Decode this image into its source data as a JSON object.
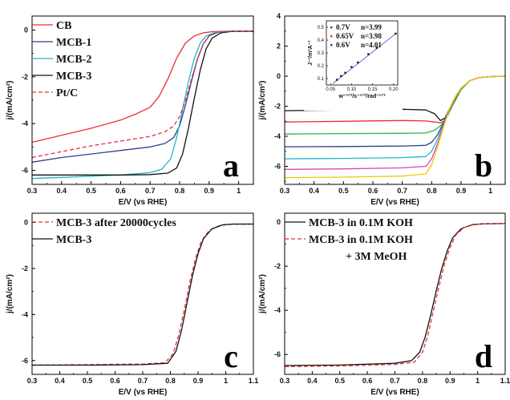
{
  "chart_data": [
    {
      "type": "line",
      "panel_letter": "a",
      "xlabel": "E/V (vs RHE)",
      "ylabel": "j/(mA/cm²)",
      "xlim": [
        0.3,
        1.05
      ],
      "ylim": [
        -6.6,
        0.6
      ],
      "xticks": [
        0.3,
        0.4,
        0.5,
        0.6,
        0.7,
        0.8,
        0.9,
        1.0
      ],
      "yticks": [
        0,
        -2,
        -4,
        -6
      ],
      "legend_position": "top-left",
      "series": [
        {
          "name": "CB",
          "color": "#e8303a",
          "dash": "solid",
          "x": [
            0.3,
            0.4,
            0.5,
            0.6,
            0.65,
            0.7,
            0.73,
            0.76,
            0.79,
            0.82,
            0.85,
            0.88,
            0.91,
            0.95,
            1.0,
            1.05
          ],
          "y": [
            -4.8,
            -4.5,
            -4.2,
            -3.85,
            -3.6,
            -3.3,
            -2.85,
            -2.1,
            -1.2,
            -0.55,
            -0.25,
            -0.12,
            -0.07,
            -0.05,
            -0.05,
            -0.05
          ]
        },
        {
          "name": "MCB-1",
          "color": "#2e3f8f",
          "dash": "solid",
          "x": [
            0.3,
            0.4,
            0.5,
            0.6,
            0.7,
            0.75,
            0.78,
            0.8,
            0.82,
            0.84,
            0.86,
            0.88,
            0.9,
            0.93,
            0.97,
            1.05
          ],
          "y": [
            -5.65,
            -5.45,
            -5.3,
            -5.15,
            -5.0,
            -4.85,
            -4.6,
            -4.1,
            -3.2,
            -2.2,
            -1.25,
            -0.6,
            -0.25,
            -0.1,
            -0.05,
            -0.05
          ]
        },
        {
          "name": "MCB-2",
          "color": "#1fb7c9",
          "dash": "solid",
          "x": [
            0.3,
            0.4,
            0.5,
            0.6,
            0.7,
            0.74,
            0.77,
            0.79,
            0.81,
            0.83,
            0.85,
            0.87,
            0.89,
            0.92,
            0.96,
            1.05
          ],
          "y": [
            -6.35,
            -6.3,
            -6.25,
            -6.2,
            -6.1,
            -5.95,
            -5.5,
            -4.6,
            -3.4,
            -2.2,
            -1.2,
            -0.55,
            -0.25,
            -0.1,
            -0.05,
            -0.05
          ]
        },
        {
          "name": "MCB-3",
          "color": "#111111",
          "dash": "solid",
          "x": [
            0.3,
            0.4,
            0.5,
            0.6,
            0.7,
            0.76,
            0.79,
            0.81,
            0.83,
            0.85,
            0.87,
            0.89,
            0.91,
            0.94,
            0.98,
            1.05
          ],
          "y": [
            -6.2,
            -6.2,
            -6.2,
            -6.2,
            -6.18,
            -6.12,
            -5.9,
            -5.3,
            -4.2,
            -2.9,
            -1.7,
            -0.8,
            -0.35,
            -0.12,
            -0.05,
            -0.05
          ]
        },
        {
          "name": "Pt/C",
          "color": "#e8303a",
          "dash": "dashed",
          "x": [
            0.3,
            0.4,
            0.5,
            0.6,
            0.7,
            0.75,
            0.78,
            0.8,
            0.82,
            0.84,
            0.86,
            0.88,
            0.9,
            0.93,
            0.97,
            1.05
          ],
          "y": [
            -5.45,
            -5.2,
            -4.95,
            -4.75,
            -4.55,
            -4.35,
            -4.1,
            -3.7,
            -3.0,
            -2.1,
            -1.25,
            -0.6,
            -0.25,
            -0.1,
            -0.05,
            -0.05
          ]
        }
      ]
    },
    {
      "type": "line",
      "panel_letter": "b",
      "xlabel": "E/V (vs RHE)",
      "ylabel": "j/(mA/cm²)",
      "xlim": [
        0.3,
        1.05
      ],
      "ylim": [
        -7.2,
        4.0
      ],
      "xticks": [
        0.3,
        0.4,
        0.5,
        0.6,
        0.7,
        0.8,
        0.9,
        1.0
      ],
      "yticks": [
        4,
        2,
        0,
        -2,
        -4,
        -6
      ],
      "series": [
        {
          "color": "#111111",
          "dash": "solid",
          "x": [
            0.3,
            0.5,
            0.7,
            0.78,
            0.81,
            0.83,
            0.845,
            0.87,
            0.9,
            0.93,
            0.96,
            1.0,
            1.05
          ],
          "y": [
            -2.3,
            -2.25,
            -2.2,
            -2.25,
            -2.5,
            -2.95,
            -2.8,
            -1.8,
            -0.8,
            -0.3,
            -0.1,
            -0.03,
            0.0
          ]
        },
        {
          "color": "#e8303a",
          "dash": "solid",
          "x": [
            0.3,
            0.5,
            0.7,
            0.78,
            0.81,
            0.83,
            0.845,
            0.87,
            0.9,
            0.93,
            0.96,
            1.0,
            1.05
          ],
          "y": [
            -3.05,
            -3.0,
            -2.95,
            -2.98,
            -3.05,
            -3.1,
            -2.95,
            -1.9,
            -0.85,
            -0.3,
            -0.1,
            -0.03,
            0.0
          ]
        },
        {
          "color": "#2db34a",
          "dash": "solid",
          "x": [
            0.3,
            0.5,
            0.7,
            0.78,
            0.81,
            0.83,
            0.85,
            0.87,
            0.9,
            0.93,
            0.96,
            1.0,
            1.05
          ],
          "y": [
            -3.85,
            -3.82,
            -3.8,
            -3.78,
            -3.6,
            -3.3,
            -2.8,
            -2.0,
            -0.9,
            -0.3,
            -0.1,
            -0.03,
            0.0
          ]
        },
        {
          "color": "#2e3f8f",
          "dash": "solid",
          "x": [
            0.3,
            0.5,
            0.7,
            0.78,
            0.8,
            0.82,
            0.84,
            0.86,
            0.88,
            0.9,
            0.93,
            0.96,
            1.0,
            1.05
          ],
          "y": [
            -4.7,
            -4.68,
            -4.65,
            -4.6,
            -4.4,
            -3.9,
            -3.1,
            -2.2,
            -1.4,
            -0.8,
            -0.3,
            -0.1,
            -0.03,
            0.0
          ]
        },
        {
          "color": "#1fb7c9",
          "dash": "solid",
          "x": [
            0.3,
            0.5,
            0.7,
            0.78,
            0.8,
            0.82,
            0.84,
            0.86,
            0.88,
            0.9,
            0.93,
            0.96,
            1.0,
            1.05
          ],
          "y": [
            -5.5,
            -5.47,
            -5.42,
            -5.35,
            -5.0,
            -4.2,
            -3.2,
            -2.2,
            -1.4,
            -0.8,
            -0.3,
            -0.1,
            -0.03,
            0.0
          ]
        },
        {
          "color": "#e040c0",
          "dash": "solid",
          "x": [
            0.3,
            0.5,
            0.7,
            0.78,
            0.8,
            0.82,
            0.84,
            0.86,
            0.88,
            0.9,
            0.93,
            0.96,
            1.0,
            1.05
          ],
          "y": [
            -6.2,
            -6.17,
            -6.1,
            -6.0,
            -5.5,
            -4.5,
            -3.3,
            -2.2,
            -1.4,
            -0.8,
            -0.3,
            -0.1,
            -0.03,
            0.0
          ]
        },
        {
          "color": "#f2c800",
          "dash": "solid",
          "x": [
            0.3,
            0.5,
            0.7,
            0.78,
            0.8,
            0.82,
            0.84,
            0.86,
            0.88,
            0.9,
            0.93,
            0.96,
            1.0,
            1.05
          ],
          "y": [
            -6.75,
            -6.72,
            -6.65,
            -6.5,
            -5.9,
            -4.7,
            -3.4,
            -2.2,
            -1.4,
            -0.8,
            -0.3,
            -0.1,
            -0.03,
            0.0
          ]
        }
      ],
      "inset": {
        "type": "scatter",
        "xlabel": "w⁻¹ᐟ²/s⁻¹ᐟ²/rad⁻¹ᐟ²",
        "ylabel": "J⁻¹/m²A⁻¹",
        "xlim": [
          0.04,
          0.21
        ],
        "ylim": [
          0.05,
          0.55
        ],
        "xticks": [
          "0.05",
          "0.10",
          "0.15",
          "0.20"
        ],
        "yticks": [
          "0.1",
          "0.2",
          "0.3",
          "0.4",
          "0.5"
        ],
        "fit_line": {
          "x": [
            0.055,
            0.205
          ],
          "y": [
            0.06,
            0.45
          ],
          "color": "#5a6fd0"
        },
        "legend": [
          {
            "label": "0.7V",
            "value": "n=3.99",
            "color": "#2e3f8f"
          },
          {
            "label": "0.65V",
            "value": "n=3.98",
            "color": "#e8303a"
          },
          {
            "label": "0.6V",
            "value": "n=4.01",
            "color": "#2e3f8f"
          }
        ],
        "points": [
          {
            "x": 0.065,
            "y": 0.09
          },
          {
            "x": 0.075,
            "y": 0.12
          },
          {
            "x": 0.085,
            "y": 0.145
          },
          {
            "x": 0.1,
            "y": 0.19
          },
          {
            "x": 0.115,
            "y": 0.225
          },
          {
            "x": 0.14,
            "y": 0.29
          },
          {
            "x": 0.16,
            "y": 0.34
          },
          {
            "x": 0.205,
            "y": 0.45
          }
        ]
      }
    },
    {
      "type": "line",
      "panel_letter": "c",
      "xlabel": "E/V (vs RHE)",
      "ylabel": "j/(mA/cm²)",
      "xlim": [
        0.3,
        1.1
      ],
      "ylim": [
        -6.6,
        0.4
      ],
      "xticks": [
        0.3,
        0.4,
        0.5,
        0.6,
        0.7,
        0.8,
        0.9,
        1.0,
        1.1
      ],
      "yticks": [
        0,
        -2,
        -4,
        -6
      ],
      "legend_position": "top-left",
      "series": [
        {
          "name": "MCB-3 after 20000cycles",
          "color": "#e8303a",
          "dash": "dashed",
          "x": [
            0.3,
            0.5,
            0.7,
            0.78,
            0.81,
            0.83,
            0.85,
            0.87,
            0.89,
            0.91,
            0.94,
            0.98,
            1.02,
            1.1
          ],
          "y": [
            -6.2,
            -6.18,
            -6.15,
            -6.1,
            -5.7,
            -4.9,
            -3.8,
            -2.6,
            -1.6,
            -0.85,
            -0.35,
            -0.12,
            -0.08,
            -0.07
          ]
        },
        {
          "name": "MCB-3",
          "color": "#111111",
          "dash": "solid",
          "x": [
            0.3,
            0.5,
            0.7,
            0.79,
            0.82,
            0.84,
            0.86,
            0.88,
            0.9,
            0.92,
            0.95,
            0.99,
            1.03,
            1.1
          ],
          "y": [
            -6.2,
            -6.2,
            -6.18,
            -6.12,
            -5.6,
            -4.7,
            -3.5,
            -2.3,
            -1.35,
            -0.7,
            -0.28,
            -0.1,
            -0.07,
            -0.07
          ]
        }
      ]
    },
    {
      "type": "line",
      "panel_letter": "d",
      "xlabel": "E/V (vs RHE)",
      "ylabel": "j/(mA/cm²)",
      "xlim": [
        0.3,
        1.1
      ],
      "ylim": [
        -6.9,
        0.4
      ],
      "xticks": [
        0.3,
        0.4,
        0.5,
        0.6,
        0.7,
        0.8,
        0.9,
        1.0,
        1.1
      ],
      "yticks": [
        0,
        -2,
        -4,
        -6
      ],
      "legend_position": "top-left",
      "series": [
        {
          "name": "MCB-3 in 0.1M KOH",
          "color": "#111111",
          "dash": "solid",
          "x": [
            0.3,
            0.5,
            0.7,
            0.76,
            0.79,
            0.81,
            0.83,
            0.85,
            0.87,
            0.89,
            0.91,
            0.94,
            0.98,
            1.02,
            1.1
          ],
          "y": [
            -6.5,
            -6.48,
            -6.4,
            -6.28,
            -5.9,
            -5.2,
            -4.2,
            -3.1,
            -2.1,
            -1.3,
            -0.7,
            -0.3,
            -0.12,
            -0.08,
            -0.07
          ]
        },
        {
          "name": "MCB-3 in 0.1M KOH",
          "name_line2": "+ 3M MeOH",
          "color": "#e8303a",
          "dash": "dashed",
          "x": [
            0.3,
            0.5,
            0.7,
            0.77,
            0.8,
            0.82,
            0.84,
            0.86,
            0.88,
            0.9,
            0.92,
            0.95,
            0.99,
            1.03,
            1.1
          ],
          "y": [
            -6.55,
            -6.52,
            -6.45,
            -6.35,
            -5.9,
            -5.1,
            -4.0,
            -2.9,
            -1.9,
            -1.15,
            -0.6,
            -0.25,
            -0.1,
            -0.08,
            -0.07
          ]
        }
      ]
    }
  ]
}
